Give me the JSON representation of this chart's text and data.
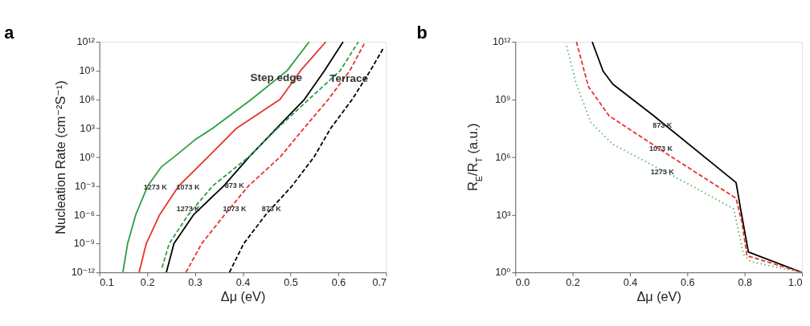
{
  "chart_data": [
    {
      "type": "line",
      "title": "a",
      "xlabel": "Δμ (eV)",
      "ylabel": "Nucleation Rate (cm⁻²S⁻¹)",
      "log": "y",
      "grid": false,
      "xlim": [
        0.1,
        0.7
      ],
      "xticks": [
        0.1,
        0.2,
        0.3,
        0.4,
        0.5,
        0.6,
        0.7
      ],
      "ylim": [
        1e-12,
        1000000000000.0
      ],
      "yticks": [
        {
          "value": 1e-12,
          "label": "10⁻¹²"
        },
        {
          "value": 1e-09,
          "label": "10⁻⁹"
        },
        {
          "value": 1e-06,
          "label": "10⁻⁶"
        },
        {
          "value": 0.001,
          "label": "10⁻³"
        },
        {
          "value": 1,
          "label": "10⁰"
        },
        {
          "value": 1000.0,
          "label": "10³"
        },
        {
          "value": 1000000.0,
          "label": "10⁶"
        },
        {
          "value": 1000000000.0,
          "label": "10⁹"
        },
        {
          "value": 1000000000000.0,
          "label": "10¹²"
        }
      ],
      "series": [
        {
          "color": "#2e9e44",
          "line_style": "solid",
          "x": [
            0.149,
            0.159,
            0.176,
            0.201,
            0.23,
            0.256,
            0.3,
            0.337,
            0.418,
            0.493,
            0.539
          ],
          "values": [
            1e-12,
            1e-09,
            1e-06,
            0.001,
            0.1,
            1,
            63,
            1000.0,
            1000000.0,
            1000000000.0,
            1000000000000.0
          ]
        },
        {
          "color": "#e8332a",
          "line_style": "solid",
          "x": [
            0.183,
            0.198,
            0.226,
            0.266,
            0.327,
            0.387,
            0.478,
            0.521,
            0.574
          ],
          "values": [
            1e-12,
            1e-09,
            1e-06,
            0.001,
            1,
            1000.0,
            1000000.0,
            1000000000.0,
            1000000000000.0
          ]
        },
        {
          "color": "#000000",
          "line_style": "solid",
          "x": [
            0.24,
            0.256,
            0.297,
            0.36,
            0.413,
            0.471,
            0.529,
            0.571,
            0.61
          ],
          "values": [
            1e-12,
            1e-09,
            1e-06,
            0.001,
            1,
            1000.0,
            1000000.0,
            1000000000.0,
            1000000000000.0
          ]
        },
        {
          "color": "#2e9e44",
          "line_style": "dashed",
          "x": [
            0.231,
            0.246,
            0.286,
            0.337,
            0.412,
            0.473,
            0.538,
            0.604,
            0.642
          ],
          "values": [
            3e-12,
            1e-09,
            1e-06,
            0.001,
            1,
            1000.0,
            1000000.0,
            1000000000.0,
            1000000000000.0
          ]
        },
        {
          "color": "#e8332a",
          "line_style": "dashed",
          "x": [
            0.281,
            0.314,
            0.362,
            0.412,
            0.478,
            0.528,
            0.579,
            0.624,
            0.654
          ],
          "values": [
            1e-12,
            1e-09,
            1e-06,
            0.001,
            1,
            1000.0,
            1000000.0,
            1000000000.0,
            600000000000.0
          ]
        },
        {
          "color": "#000000",
          "line_style": "dashed",
          "x": [
            0.372,
            0.402,
            0.448,
            0.503,
            0.549,
            0.584,
            0.629,
            0.667,
            0.695
          ],
          "values": [
            1e-12,
            1e-09,
            1e-06,
            0.001,
            1,
            1000.0,
            1000000.0,
            1000000000.0,
            250000000000.0
          ]
        }
      ],
      "annotations": [
        "1273 K",
        "1073 K",
        "873 K",
        {
          "text": "1273 K",
          "x": 0.286,
          "y": 4e-06
        },
        {
          "text": "1073 K",
          "x": 0.383,
          "y": 4e-06
        },
        {
          "text": "873 K",
          "x": 0.46,
          "y": 4e-06
        },
        {
          "text": "Step edge",
          "x": 0.47,
          "y": 200000000.0
        },
        {
          "text": "Terrace",
          "x": 0.622,
          "y": 160000000.0
        }
      ]
    },
    {
      "type": "line",
      "title": "b",
      "xlabel": "Δμ (eV)",
      "ylabel": "R$_{E}$/R$_{T}$ (a.u.)",
      "log": "y",
      "grid": false,
      "xlim": [
        0,
        1
      ],
      "xticks": [
        {
          "value": 0,
          "label": "0.0"
        },
        0.2,
        0.4,
        0.6,
        0.8,
        {
          "value": 1,
          "label": "1.0"
        }
      ],
      "ylim": [
        1,
        1000000000000.0
      ],
      "yticks": [
        {
          "value": 1,
          "label": "10⁰"
        },
        {
          "value": 1000.0,
          "label": "10³"
        },
        {
          "value": 1000000.0,
          "label": "10⁶"
        },
        {
          "value": 1000000000.0,
          "label": "10⁹"
        },
        {
          "value": 1000000000000.0,
          "label": "10¹²"
        }
      ],
      "series": [
        {
          "color": "#000000",
          "line_style": "solid",
          "x": [
            0.268,
            0.306,
            0.34,
            0.483,
            0.77,
            0.787,
            0.813,
            1.0
          ],
          "values": [
            1000000000000.0,
            30000000000.0,
            6300000000.0,
            140000000.0,
            47000.0,
            1600.0,
            11.5,
            1
          ]
        },
        {
          "color": "#e8332a",
          "line_style": "dashed",
          "x": [
            0.213,
            0.255,
            0.327,
            0.542,
            0.77,
            0.791,
            0.808,
            1.0
          ],
          "values": [
            1000000000000.0,
            4600000000.0,
            140000000.0,
            1100000.0,
            7200.0,
            355,
            7.4,
            1
          ]
        },
        {
          "color": "#4caf50",
          "line_style": "dotted",
          "x": [
            0.179,
            0.213,
            0.264,
            0.34,
            0.466,
            0.61,
            0.762,
            0.796,
            0.821,
            1.0
          ],
          "values": [
            600000000000.0,
            6000000000.0,
            62000000.0,
            4700000.0,
            470000.0,
            35000.0,
            2000.0,
            8.5,
            3.6,
            1
          ]
        }
      ],
      "annotations": [
        {
          "text": "873 K",
          "x": 0.513,
          "y": 46000000.0
        },
        {
          "text": "1073 K",
          "x": 0.508,
          "y": 2600000.0
        },
        {
          "text": "1273 K",
          "x": 0.513,
          "y": 170000.0
        }
      ]
    }
  ]
}
